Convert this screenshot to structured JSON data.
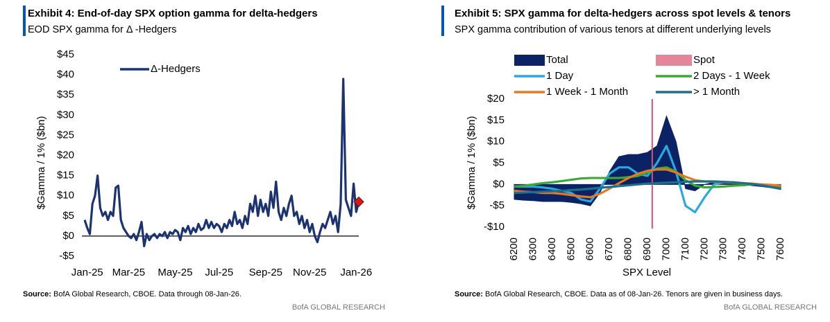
{
  "chart_data": [
    {
      "type": "line",
      "title": "Exhibit 4: End-of-day SPX option gamma for delta-hedgers",
      "subtitle": "EOD SPX gamma for  Δ -Hedgers",
      "y_label": "$Gamma / 1% ($bn)",
      "categories": [
        null,
        "Jan-25",
        null,
        null,
        null,
        null,
        null,
        null,
        null,
        null,
        null,
        null,
        null,
        null,
        null,
        null,
        null,
        "Mar-25",
        null,
        null,
        null,
        null,
        null,
        null,
        null,
        null,
        null,
        null,
        null,
        null,
        null,
        null,
        null,
        null,
        null,
        "May-25",
        null,
        null,
        null,
        null,
        null,
        null,
        null,
        null,
        null,
        null,
        null,
        null,
        null,
        null,
        null,
        null,
        "Jul-25",
        null,
        null,
        null,
        null,
        null,
        null,
        null,
        null,
        null,
        null,
        null,
        null,
        null,
        null,
        null,
        null,
        null,
        "Sep-25",
        null,
        null,
        null,
        null,
        null,
        null,
        null,
        null,
        null,
        null,
        null,
        null,
        null,
        null,
        null,
        null,
        "Nov-25",
        null,
        null,
        null,
        null,
        null,
        null,
        null,
        null,
        null,
        null,
        null,
        null,
        null,
        null,
        null,
        null,
        null,
        "Jan-26",
        null
      ],
      "series": [
        {
          "name": "Δ-Hedgers",
          "color": "#1c3372",
          "values": [
            4,
            2,
            0.5,
            8,
            10,
            15,
            7,
            5,
            6,
            4,
            6,
            5,
            12,
            12.5,
            4,
            2,
            1,
            0,
            -0.5,
            0.5,
            -1,
            1,
            3.5,
            -2.5,
            0.5,
            -1,
            0,
            0.5,
            -0.5,
            0.5,
            0,
            1,
            -0.5,
            1,
            0.5,
            1.5,
            1,
            -1,
            2,
            1,
            2.5,
            0.5,
            2,
            1,
            3,
            1.5,
            2,
            4,
            2,
            3.5,
            2,
            3,
            2.5,
            1,
            3,
            2,
            4,
            2.5,
            6,
            3,
            4,
            2,
            5,
            3,
            8,
            6,
            10,
            5,
            9,
            6,
            8,
            5,
            11,
            7,
            13.5,
            6,
            4,
            7,
            5,
            8,
            10,
            5,
            6,
            3,
            5,
            2,
            4,
            1,
            3,
            0,
            -1.5,
            1,
            3,
            2,
            4,
            6,
            3,
            5,
            1,
            8,
            39,
            9,
            7,
            5,
            13,
            6,
            8.5
          ]
        }
      ],
      "last_point_marker_color": "#d7191c",
      "ylim": [
        -5,
        45
      ],
      "yticks": [
        {
          "value": -5,
          "label": "-$5"
        },
        {
          "value": 0,
          "label": "$0"
        },
        {
          "value": 5,
          "label": "$5"
        },
        {
          "value": 10,
          "label": "$10"
        },
        {
          "value": 15,
          "label": "$15"
        },
        {
          "value": 20,
          "label": "$20"
        },
        {
          "value": 25,
          "label": "$25"
        },
        {
          "value": 30,
          "label": "$30"
        },
        {
          "value": 35,
          "label": "$35"
        },
        {
          "value": 40,
          "label": "$40"
        },
        {
          "value": 45,
          "label": "$45"
        }
      ],
      "grid": false,
      "legend": "upper left",
      "source_label": "Source:",
      "source": "BofA Global Research, CBOE. Data through 08-Jan-26.",
      "brand": "BofA GLOBAL RESEARCH"
    },
    {
      "type": "line",
      "title": "Exhibit 5: SPX gamma for delta-hedgers across spot levels & tenors",
      "subtitle": "SPX gamma contribution of various tenors at different underlying levels",
      "y_label": "$Gamma / 1% ($bn)",
      "x_label": "SPX Level",
      "x": [
        6200,
        6250,
        6300,
        6350,
        6400,
        6450,
        6500,
        6550,
        6600,
        6650,
        6700,
        6750,
        6800,
        6850,
        6900,
        6950,
        7000,
        7050,
        7100,
        7150,
        7200,
        7250,
        7300,
        7350,
        7400,
        7450,
        7500,
        7550,
        7600
      ],
      "series": [
        {
          "name": "Total",
          "color": "#0b2265",
          "style": "area",
          "values": [
            -3.5,
            -3.7,
            -3.8,
            -4,
            -4,
            -4,
            -4.2,
            -4.5,
            -5,
            -2,
            3,
            6.5,
            7,
            7,
            7.5,
            9,
            16,
            10,
            -1,
            -1.5,
            0,
            0.5,
            0.5,
            0.3,
            0,
            -0.3,
            -0.5,
            -0.8,
            -1.2
          ]
        },
        {
          "name": "1 Day",
          "color": "#29a9e1",
          "values": [
            -0.5,
            -0.5,
            -0.5,
            -0.7,
            -1,
            -1.5,
            -2,
            -3.5,
            -4,
            -1,
            2.5,
            4,
            4,
            2.5,
            2,
            5,
            9,
            3,
            -5,
            -6.5,
            -3,
            0,
            0.5,
            0.5,
            0.3,
            0,
            0,
            -0.2,
            -0.3
          ]
        },
        {
          "name": "2 Days - 1 Week",
          "color": "#3aa935",
          "values": [
            -0.5,
            -0.3,
            0,
            0.3,
            0.5,
            0.8,
            1.1,
            1.4,
            1.5,
            1.5,
            1.5,
            1.5,
            1.7,
            2,
            2.8,
            3.7,
            4,
            3,
            1,
            -0.3,
            -0.7,
            -0.6,
            -0.5,
            -0.3,
            -0.2,
            0,
            0,
            -0.2,
            -0.5
          ]
        },
        {
          "name": "1 Week - 1 Month",
          "color": "#e87722",
          "values": [
            -1.5,
            -1.7,
            -1.8,
            -2,
            -2,
            -2.2,
            -2.5,
            -2.8,
            -3,
            -2.2,
            -1,
            0.3,
            1.5,
            2.5,
            3.2,
            3.5,
            3.5,
            2.8,
            1.8,
            1,
            0.7,
            0.6,
            0.5,
            0.4,
            0.3,
            0.2,
            0,
            -0.1,
            -0.3
          ]
        },
        {
          "name": "> 1 Month",
          "color": "#1d6f8a",
          "values": [
            -2,
            -1.9,
            -1.8,
            -1.7,
            -1.6,
            -1.5,
            -1.3,
            -1.2,
            -1,
            -0.8,
            -0.6,
            -0.4,
            -0.2,
            0,
            0.2,
            0.3,
            0.4,
            0.5,
            0.6,
            0.7,
            0.7,
            0.7,
            0.6,
            0.5,
            0.3,
            0.1,
            -0.2,
            -0.6,
            -1
          ]
        }
      ],
      "spot": {
        "name": "Spot",
        "color": "#d9536f",
        "x": 6925
      },
      "xlim": [
        6200,
        7600
      ],
      "xticks": [
        6200,
        6300,
        6400,
        6500,
        6600,
        6700,
        6800,
        6900,
        7000,
        7100,
        7200,
        7300,
        7400,
        7500,
        7600
      ],
      "ylim": [
        -10,
        20
      ],
      "yticks": [
        {
          "value": -10,
          "label": "-$10"
        },
        {
          "value": -5,
          "label": "-$5"
        },
        {
          "value": 0,
          "label": "$0"
        },
        {
          "value": 5,
          "label": "$5"
        },
        {
          "value": 10,
          "label": "$10"
        },
        {
          "value": 15,
          "label": "$15"
        },
        {
          "value": 20,
          "label": "$20"
        }
      ],
      "grid": false,
      "legend": "top",
      "source_label": "Source:",
      "source": "BofA Global Research, CBOE. Data as of 08-Jan-26. Tenors are given in business days.",
      "brand": "BofA GLOBAL RESEARCH"
    }
  ]
}
